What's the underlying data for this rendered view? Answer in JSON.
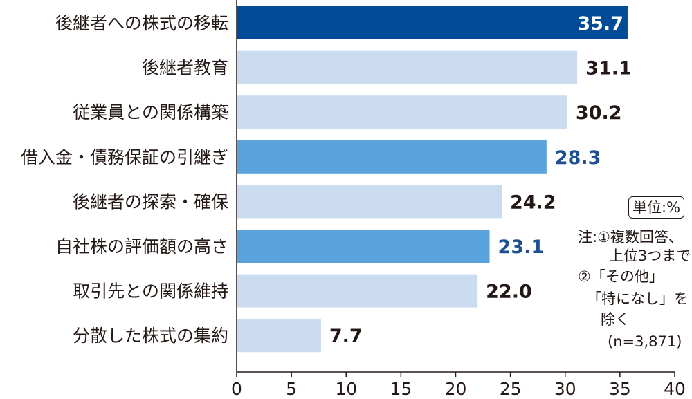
{
  "chart_data": {
    "type": "bar",
    "orientation": "horizontal",
    "categories": [
      "後継者への株式の移転",
      "後継者教育",
      "従業員との関係構築",
      "借入金・債務保証の引継ぎ",
      "後継者の探索・確保",
      "自社株の評価額の高さ",
      "取引先との関係維持",
      "分散した株式の集約"
    ],
    "values": [
      35.7,
      31.1,
      30.2,
      28.3,
      24.2,
      23.1,
      22.0,
      7.7
    ],
    "value_labels": [
      "35.7",
      "31.1",
      "30.2",
      "28.3",
      "24.2",
      "23.1",
      "22.0",
      "7.7"
    ],
    "highlight": [
      "top",
      "normal",
      "normal",
      "accent",
      "normal",
      "accent",
      "normal",
      "normal"
    ],
    "xlim": [
      0,
      40
    ],
    "xticks": [
      "0",
      "5",
      "10",
      "15",
      "20",
      "25",
      "30",
      "35",
      "40"
    ],
    "grid": false,
    "colors": {
      "top": "#004a97",
      "accent": "#5ba3dc",
      "normal": "#cbdcf0",
      "accent_text": "#1d4f91",
      "text": "#231815",
      "top_text": "#ffffff"
    }
  },
  "unit_label": "単位:%",
  "notes": {
    "line1": "注:①複数回答、",
    "line2": "上位3つまで",
    "line3": "②「その他」",
    "line4": "「特になし」を",
    "line5": "除く",
    "line6": "(n=3,871)"
  }
}
